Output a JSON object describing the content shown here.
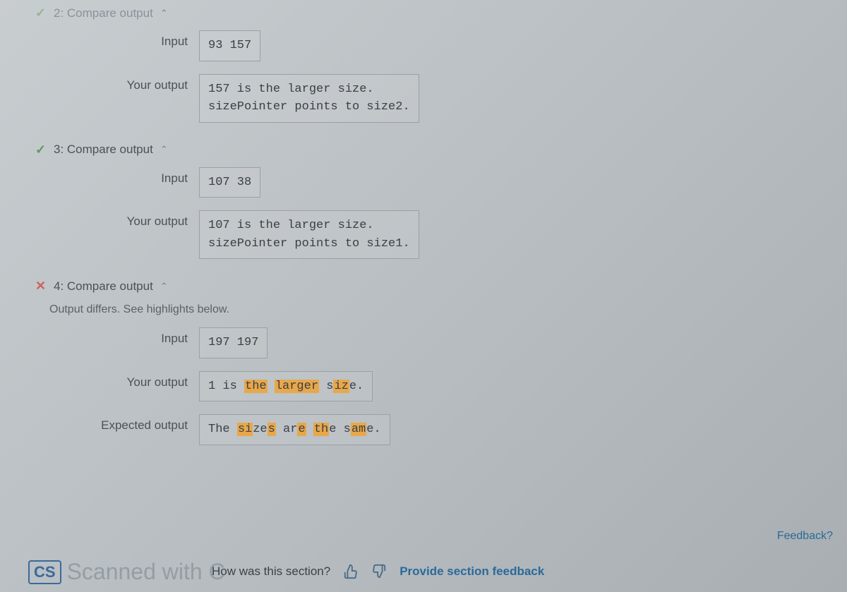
{
  "tests": [
    {
      "num": "2",
      "title": "Compare output",
      "status": "pass",
      "faded": true,
      "rows": [
        {
          "label": "Input",
          "text": "93 157"
        },
        {
          "label": "Your output",
          "text": "157 is the larger size.\nsizePointer points to size2."
        }
      ]
    },
    {
      "num": "3",
      "title": "Compare output",
      "status": "pass",
      "faded": false,
      "rows": [
        {
          "label": "Input",
          "text": "107 38"
        },
        {
          "label": "Your output",
          "text": "107 is the larger size.\nsizePointer points to size1."
        }
      ]
    },
    {
      "num": "4",
      "title": "Compare output",
      "status": "fail",
      "faded": false,
      "sub": "Output differs. See highlights below.",
      "rows": [
        {
          "label": "Input",
          "text": "197 197"
        },
        {
          "label": "Your output",
          "segments": [
            {
              "t": "1 is ",
              "h": false
            },
            {
              "t": "the",
              "h": true
            },
            {
              "t": " ",
              "h": false
            },
            {
              "t": "larger",
              "h": true
            },
            {
              "t": " s",
              "h": false
            },
            {
              "t": "iz",
              "h": true
            },
            {
              "t": "e.",
              "h": false
            }
          ]
        },
        {
          "label": "Expected output",
          "segments": [
            {
              "t": "The ",
              "h": false
            },
            {
              "t": "si",
              "h": true
            },
            {
              "t": "ze",
              "h": false
            },
            {
              "t": "s",
              "h": true
            },
            {
              "t": " ar",
              "h": false
            },
            {
              "t": "e",
              "h": true
            },
            {
              "t": " ",
              "h": false
            },
            {
              "t": "th",
              "h": true
            },
            {
              "t": "e s",
              "h": false
            },
            {
              "t": "am",
              "h": true
            },
            {
              "t": "e.",
              "h": false
            }
          ]
        }
      ]
    }
  ],
  "footer": {
    "badge": "CS",
    "watermark": "Scanned with C",
    "question": "How was this section?",
    "link": "Provide section feedback"
  },
  "corner": "Feedback?",
  "colors": {
    "pass": "#5a9a5a",
    "fail": "#d0615a",
    "highlight": "#e8a74a",
    "link": "#2a6a9a",
    "border": "#9aa0a6"
  }
}
